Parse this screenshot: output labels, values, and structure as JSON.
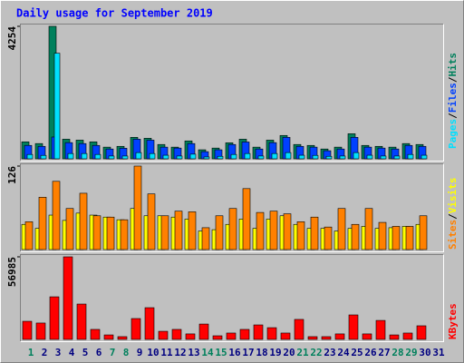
{
  "chart_data": [
    {
      "type": "bar",
      "title": "Daily usage for September 2019",
      "legend_separator": "/",
      "series": [
        {
          "name": "Hits",
          "color": "#00805c",
          "values": [
            545,
            490,
            4254,
            630,
            600,
            545,
            375,
            400,
            690,
            660,
            460,
            375,
            575,
            290,
            345,
            515,
            630,
            375,
            600,
            750,
            460,
            430,
            315,
            375,
            805,
            430,
            400,
            375,
            490,
            460,
            null
          ]
        },
        {
          "name": "Files",
          "color": "#0040ff",
          "values": [
            430,
            400,
            700,
            520,
            490,
            430,
            315,
            340,
            630,
            600,
            375,
            345,
            490,
            230,
            290,
            460,
            540,
            315,
            520,
            690,
            400,
            375,
            260,
            315,
            690,
            375,
            345,
            315,
            430,
            400,
            null
          ]
        },
        {
          "name": "Pages",
          "color": "#00e0ff",
          "values": [
            140,
            110,
            3390,
            170,
            170,
            140,
            90,
            90,
            200,
            170,
            115,
            90,
            150,
            60,
            80,
            140,
            170,
            90,
            170,
            200,
            115,
            110,
            80,
            90,
            200,
            115,
            90,
            90,
            140,
            115,
            null
          ]
        }
      ],
      "ylim": [
        0,
        4254
      ],
      "yticks": [
        4254
      ]
    },
    {
      "type": "bar",
      "legend_separator": "/",
      "series": [
        {
          "name": "Visits",
          "color": "#ffff00",
          "values": [
            38,
            32,
            52,
            44,
            55,
            52,
            49,
            45,
            62,
            51,
            51,
            49,
            46,
            28,
            30,
            38,
            46,
            32,
            46,
            51,
            38,
            32,
            32,
            28,
            32,
            35,
            32,
            33,
            35,
            38,
            null
          ]
        },
        {
          "name": "Sites",
          "color": "#ff8000",
          "values": [
            42,
            79,
            103,
            62,
            85,
            51,
            49,
            45,
            126,
            84,
            51,
            58,
            57,
            33,
            51,
            62,
            92,
            56,
            58,
            54,
            42,
            49,
            34,
            62,
            38,
            62,
            41,
            35,
            35,
            51,
            null
          ]
        }
      ],
      "ylim": [
        0,
        126
      ],
      "yticks": [
        126
      ]
    },
    {
      "type": "bar",
      "categories": [
        "1",
        "2",
        "3",
        "4",
        "5",
        "6",
        "7",
        "8",
        "9",
        "10",
        "11",
        "12",
        "13",
        "14",
        "15",
        "16",
        "17",
        "18",
        "19",
        "20",
        "21",
        "22",
        "23",
        "24",
        "25",
        "26",
        "27",
        "28",
        "29",
        "30",
        "31"
      ],
      "x_label_colors": [
        "#00805c",
        "#000080",
        "#000080",
        "#000080",
        "#000080",
        "#000080",
        "#00805c",
        "#00805c",
        "#000080",
        "#000080",
        "#000080",
        "#000080",
        "#000080",
        "#00805c",
        "#00805c",
        "#000080",
        "#000080",
        "#000080",
        "#000080",
        "#000080",
        "#00805c",
        "#00805c",
        "#000080",
        "#000080",
        "#000080",
        "#000080",
        "#000080",
        "#00805c",
        "#00805c",
        "#000080",
        "#000080"
      ],
      "series": [
        {
          "name": "KBytes",
          "color": "#ff0000",
          "values": [
            12500,
            11300,
            29400,
            56985,
            24400,
            6900,
            3100,
            1900,
            14400,
            21900,
            5600,
            6900,
            3800,
            10600,
            2500,
            4400,
            6900,
            10000,
            8100,
            4400,
            13800,
            1900,
            1900,
            3800,
            16900,
            3800,
            13100,
            3100,
            4400,
            9400,
            null
          ]
        }
      ],
      "ylim": [
        0,
        56985
      ],
      "yticks": [
        56985
      ]
    }
  ]
}
